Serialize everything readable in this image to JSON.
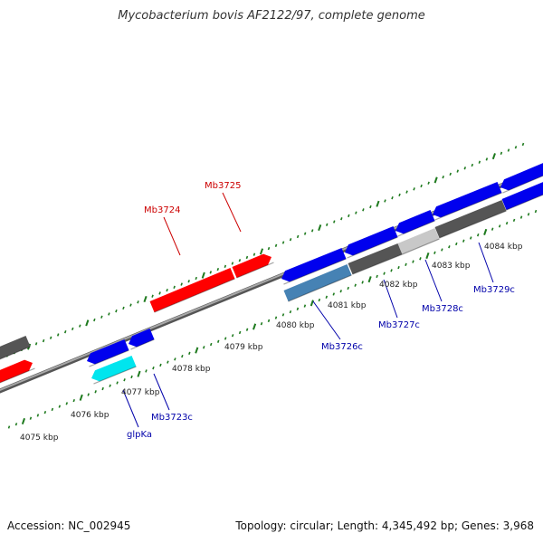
{
  "title": "Mycobacterium bovis AF2122/97, complete genome",
  "footer": {
    "accession": "Accession: NC_002945",
    "summary": "Topology: circular; Length: 4,345,492 bp; Genes: 3,968"
  },
  "colors": {
    "background": "#ffffff",
    "backbone": "#8a8a8a",
    "tick": "#1e7a1e",
    "forward_gene": "#ff0000",
    "reverse_gene": "#0000ee",
    "rna_gene": "#00e5ee",
    "pseudo_gene": "#555555",
    "pseudo_gene_light": "#c8c8c8",
    "other_gene": "#4682b4",
    "label_forward": "#cc0000",
    "label_reverse": "#0000aa",
    "scale_text": "#222222"
  },
  "scale_labels": [
    "4075 kbp",
    "4076 kbp",
    "4077 kbp",
    "4078 kbp",
    "4079 kbp",
    "4080 kbp",
    "4081 kbp",
    "4082 kbp",
    "4083 kbp",
    "4084 kbp"
  ],
  "gene_labels": [
    {
      "text": "Mb3724",
      "strand": "forward"
    },
    {
      "text": "Mb3725",
      "strand": "forward"
    },
    {
      "text": "glpKa",
      "strand": "reverse"
    },
    {
      "text": "Mb3723c",
      "strand": "reverse"
    },
    {
      "text": "Mb3726c",
      "strand": "reverse"
    },
    {
      "text": "Mb3727c",
      "strand": "reverse"
    },
    {
      "text": "Mb3728c",
      "strand": "reverse"
    },
    {
      "text": "Mb3729c",
      "strand": "reverse"
    }
  ]
}
